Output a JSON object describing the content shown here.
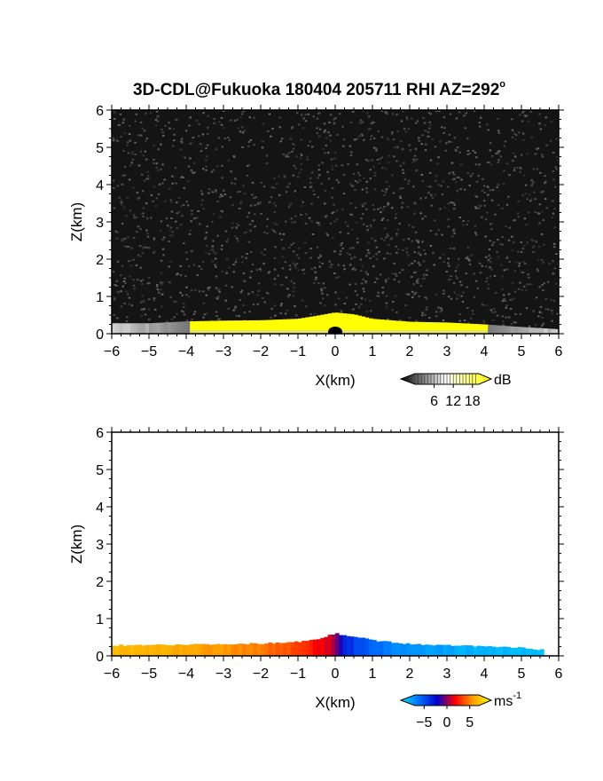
{
  "figure": {
    "title_main": "3D-CDL@Fukuoka 180404 205711 RHI AZ=292",
    "title_degree": "o"
  },
  "chart_data": [
    {
      "type": "heatmap",
      "name": "snr",
      "xlabel": "X(km)",
      "ylabel": "Z(km)",
      "xlim": [
        -6,
        6
      ],
      "ylim": [
        0,
        6
      ],
      "xticks": [
        "-6",
        "-5",
        "-4",
        "-3",
        "-2",
        "-1",
        "0",
        "1",
        "2",
        "3",
        "4",
        "5",
        "6"
      ],
      "yticks": [
        "0",
        "1",
        "2",
        "3",
        "4",
        "5",
        "6"
      ],
      "background_color": "#141414",
      "echo_top_km": [
        [
          -6.0,
          0.28
        ],
        [
          -5.0,
          0.28
        ],
        [
          -4.0,
          0.33
        ],
        [
          -3.0,
          0.35
        ],
        [
          -2.0,
          0.36
        ],
        [
          -1.0,
          0.4
        ],
        [
          -0.5,
          0.48
        ],
        [
          0.0,
          0.57
        ],
        [
          0.5,
          0.52
        ],
        [
          1.0,
          0.4
        ],
        [
          2.0,
          0.32
        ],
        [
          3.0,
          0.3
        ],
        [
          4.0,
          0.25
        ],
        [
          5.0,
          0.18
        ],
        [
          6.0,
          0.12
        ]
      ],
      "saturated_region_x_km": [
        -4.0,
        4.0
      ],
      "colorbar": {
        "label": "dB",
        "ticks": [
          "6",
          "12",
          "18"
        ],
        "range": [
          0,
          20
        ],
        "colors": [
          "#000000",
          "#ffffff",
          "#ffff00"
        ]
      }
    },
    {
      "type": "heatmap",
      "name": "doppler-velocity",
      "xlabel": "X(km)",
      "ylabel": "Z(km)",
      "xlim": [
        -6,
        6
      ],
      "ylim": [
        0,
        6
      ],
      "xticks": [
        "-6",
        "-5",
        "-4",
        "-3",
        "-2",
        "-1",
        "0",
        "1",
        "2",
        "3",
        "4",
        "5",
        "6"
      ],
      "yticks": [
        "0",
        "1",
        "2",
        "3",
        "4",
        "5",
        "6"
      ],
      "background_color": "#ffffff",
      "echo_top_km": [
        [
          -6.0,
          0.28
        ],
        [
          -5.0,
          0.3
        ],
        [
          -4.0,
          0.3
        ],
        [
          -3.0,
          0.32
        ],
        [
          -2.0,
          0.33
        ],
        [
          -1.0,
          0.38
        ],
        [
          -0.5,
          0.45
        ],
        [
          0.0,
          0.6
        ],
        [
          0.5,
          0.52
        ],
        [
          1.0,
          0.42
        ],
        [
          2.0,
          0.32
        ],
        [
          3.0,
          0.28
        ],
        [
          4.0,
          0.26
        ],
        [
          5.0,
          0.22
        ],
        [
          5.5,
          0.17
        ]
      ],
      "velocity_profile_x_ms": [
        [
          -6.0,
          5
        ],
        [
          -4.0,
          4.5
        ],
        [
          -2.0,
          3.5
        ],
        [
          -1.0,
          2.5
        ],
        [
          -0.2,
          1
        ],
        [
          0.0,
          0
        ],
        [
          0.3,
          -2.5
        ],
        [
          1.0,
          -4
        ],
        [
          2.0,
          -5
        ],
        [
          4.0,
          -6
        ],
        [
          5.5,
          -6
        ]
      ],
      "colorbar": {
        "label": "ms",
        "label_exponent": "-1",
        "ticks": [
          "-5",
          "0",
          "5"
        ],
        "range": [
          -7,
          7
        ],
        "colors": [
          "#00e0ff",
          "#0070ff",
          "#0000cc",
          "#ff0000",
          "#ffa000",
          "#ffff00"
        ]
      }
    }
  ]
}
